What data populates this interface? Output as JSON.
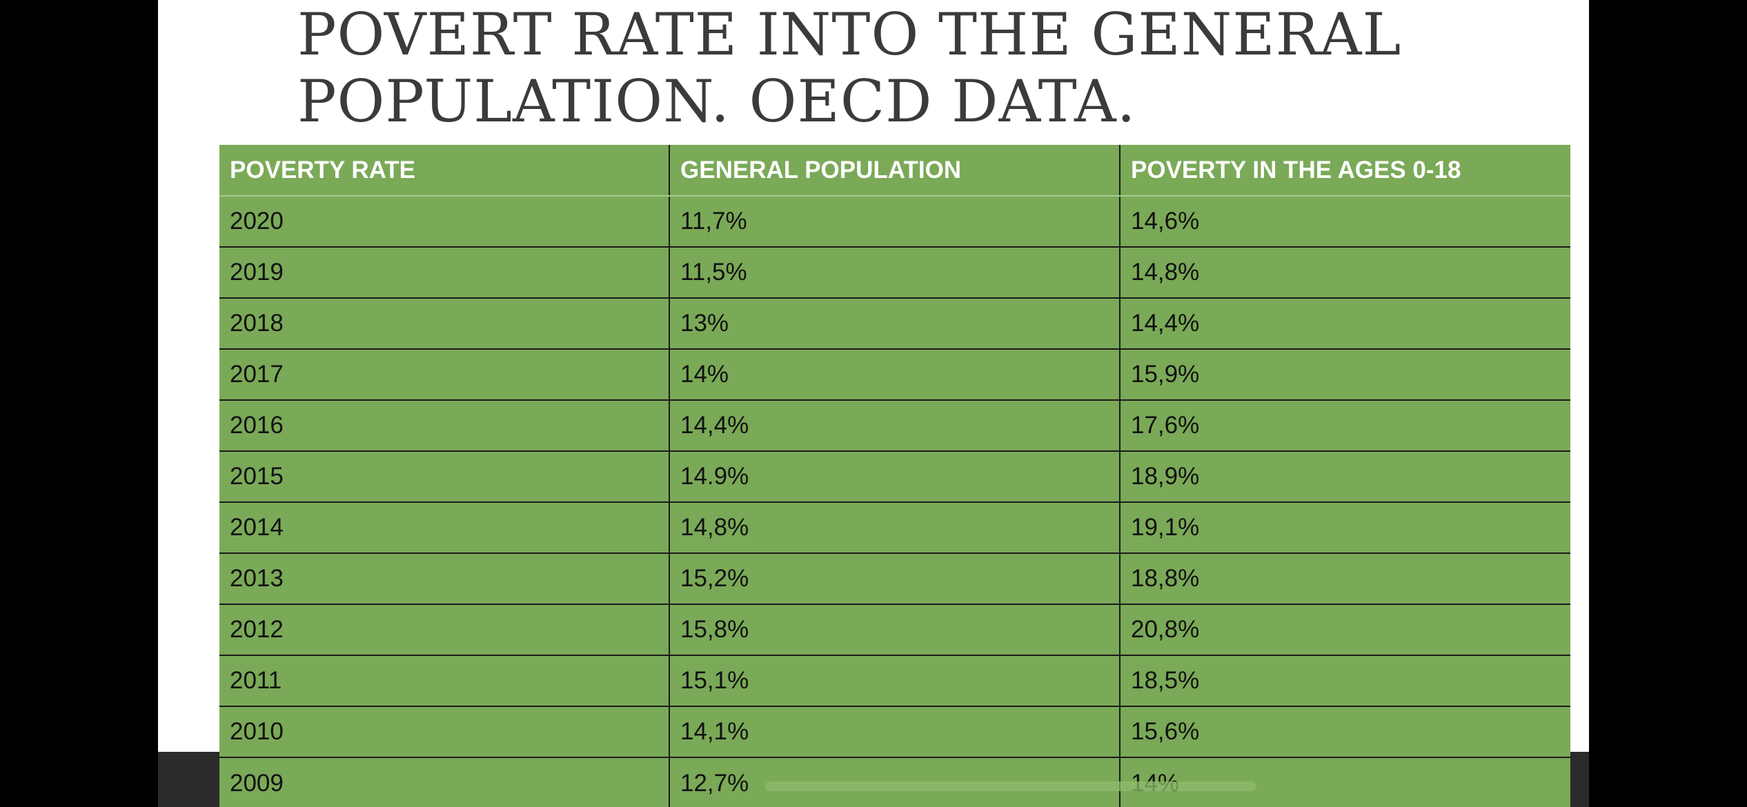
{
  "slide": {
    "title_lines": [
      "POVERT RATE INTO THE GENERAL",
      "POPULATION. OECD DATA."
    ]
  },
  "table": {
    "headers": [
      "POVERTY RATE",
      "GENERAL POPULATION",
      "POVERTY IN THE AGES 0-18"
    ],
    "rows": [
      [
        "2020",
        "11,7%",
        "14,6%"
      ],
      [
        "2019",
        "11,5%",
        "14,8%"
      ],
      [
        "2018",
        "13%",
        "14,4%"
      ],
      [
        "2017",
        "14%",
        "15,9%"
      ],
      [
        "2016",
        "14,4%",
        "17,6%"
      ],
      [
        "2015",
        "14.9%",
        "18,9%"
      ],
      [
        "2014",
        "14,8%",
        "19,1%"
      ],
      [
        "2013",
        "15,2%",
        "18,8%"
      ],
      [
        "2012",
        "15,8%",
        "20,8%"
      ],
      [
        "2011",
        "15,1%",
        "18,5%"
      ],
      [
        "2010",
        "14,1%",
        "15,6%"
      ],
      [
        "2009",
        "12,7%",
        "14%"
      ]
    ]
  },
  "colors": {
    "table_fill": "#7aa957",
    "title_text": "#3b3b3b",
    "header_text": "#ffffff",
    "cell_text": "#111111"
  }
}
